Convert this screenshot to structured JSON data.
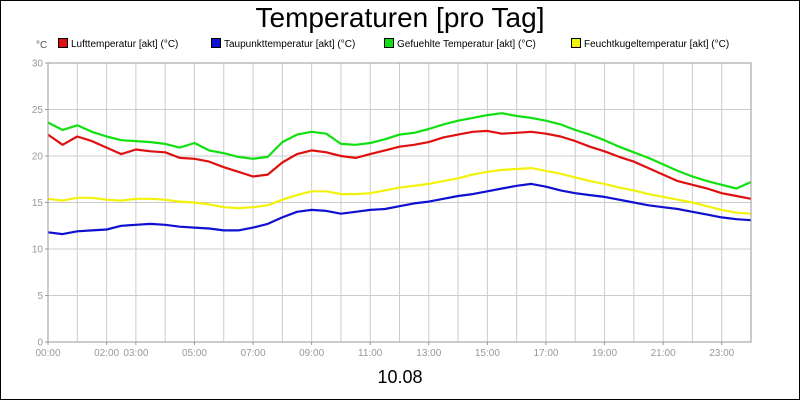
{
  "chart_data": {
    "type": "line",
    "title": "Temperaturen [pro Tag]",
    "y_unit": "°C",
    "date_label": "10.08",
    "ylim": [
      0,
      30
    ],
    "y_ticks": [
      0,
      5,
      10,
      15,
      20,
      25,
      30
    ],
    "x_range": [
      0,
      24
    ],
    "x_ticks": [
      {
        "h": 0,
        "label": "00:00"
      },
      {
        "h": 2,
        "label": "02:00"
      },
      {
        "h": 3,
        "label": "03:00"
      },
      {
        "h": 5,
        "label": "05:00"
      },
      {
        "h": 7,
        "label": "07:00"
      },
      {
        "h": 9,
        "label": "09:00"
      },
      {
        "h": 11,
        "label": "11:00"
      },
      {
        "h": 13,
        "label": "13:00"
      },
      {
        "h": 15,
        "label": "15:00"
      },
      {
        "h": 17,
        "label": "17:00"
      },
      {
        "h": 19,
        "label": "19:00"
      },
      {
        "h": 21,
        "label": "21:00"
      },
      {
        "h": 23,
        "label": "23:00"
      }
    ],
    "grid": true,
    "legend_position": "top",
    "x_hours": [
      0,
      0.5,
      1,
      1.5,
      2,
      2.5,
      3,
      3.5,
      4,
      4.5,
      5,
      5.5,
      6,
      6.5,
      7,
      7.5,
      8,
      8.5,
      9,
      9.5,
      10,
      10.5,
      11,
      11.5,
      12,
      12.5,
      13,
      13.5,
      14,
      14.5,
      15,
      15.5,
      16,
      16.5,
      17,
      17.5,
      18,
      18.5,
      19,
      19.5,
      20,
      20.5,
      21,
      21.5,
      22,
      22.5,
      23,
      23.5,
      24
    ],
    "series": [
      {
        "name": "Lufttemperatur [akt] (°C)",
        "color": "#e01010",
        "values": [
          22.3,
          21.2,
          22.1,
          21.6,
          20.9,
          20.2,
          20.7,
          20.5,
          20.4,
          19.8,
          19.7,
          19.4,
          18.8,
          18.3,
          17.8,
          18.0,
          19.3,
          20.2,
          20.6,
          20.4,
          20.0,
          19.8,
          20.2,
          20.6,
          21.0,
          21.2,
          21.5,
          22.0,
          22.3,
          22.6,
          22.7,
          22.4,
          22.5,
          22.6,
          22.4,
          22.1,
          21.6,
          21.0,
          20.5,
          19.9,
          19.4,
          18.7,
          18.0,
          17.3,
          16.9,
          16.5,
          16.0,
          15.7,
          15.4
        ]
      },
      {
        "name": "Taupunkttemperatur [akt] (°C)",
        "color": "#1010d0",
        "values": [
          11.8,
          11.6,
          11.9,
          12.0,
          12.1,
          12.5,
          12.6,
          12.7,
          12.6,
          12.4,
          12.3,
          12.2,
          12.0,
          12.0,
          12.3,
          12.7,
          13.4,
          14.0,
          14.2,
          14.1,
          13.8,
          14.0,
          14.2,
          14.3,
          14.6,
          14.9,
          15.1,
          15.4,
          15.7,
          15.9,
          16.2,
          16.5,
          16.8,
          17.0,
          16.7,
          16.3,
          16.0,
          15.8,
          15.6,
          15.3,
          15.0,
          14.7,
          14.5,
          14.3,
          14.0,
          13.7,
          13.4,
          13.2,
          13.1
        ]
      },
      {
        "name": "Gefuehlte Temperatur [akt] (°C)",
        "color": "#10e010",
        "values": [
          23.6,
          22.8,
          23.3,
          22.6,
          22.1,
          21.7,
          21.6,
          21.5,
          21.3,
          20.9,
          21.4,
          20.6,
          20.3,
          19.9,
          19.7,
          19.9,
          21.5,
          22.3,
          22.6,
          22.4,
          21.3,
          21.2,
          21.4,
          21.8,
          22.3,
          22.5,
          22.9,
          23.4,
          23.8,
          24.1,
          24.4,
          24.6,
          24.3,
          24.1,
          23.8,
          23.4,
          22.8,
          22.3,
          21.7,
          21.0,
          20.4,
          19.8,
          19.1,
          18.4,
          17.8,
          17.3,
          16.9,
          16.5,
          17.2
        ]
      },
      {
        "name": "Feuchtkugeltemperatur [akt] (°C)",
        "color": "#f2f20a",
        "values": [
          15.4,
          15.2,
          15.5,
          15.5,
          15.3,
          15.2,
          15.4,
          15.4,
          15.3,
          15.1,
          15.0,
          14.8,
          14.5,
          14.4,
          14.5,
          14.7,
          15.3,
          15.8,
          16.2,
          16.2,
          15.9,
          15.9,
          16.0,
          16.3,
          16.6,
          16.8,
          17.0,
          17.3,
          17.6,
          18.0,
          18.3,
          18.5,
          18.6,
          18.7,
          18.4,
          18.1,
          17.7,
          17.3,
          17.0,
          16.6,
          16.3,
          15.9,
          15.6,
          15.3,
          15.0,
          14.6,
          14.2,
          13.9,
          13.8
        ]
      }
    ]
  }
}
